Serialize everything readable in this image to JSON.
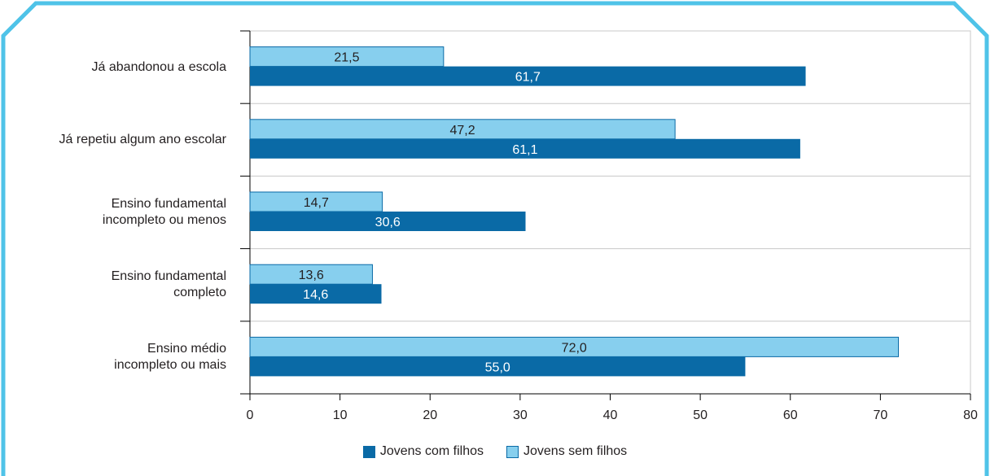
{
  "colors": {
    "frame": "#4fc3e8",
    "com_filhos": "#0a6aa6",
    "sem_filhos": "#87cfee",
    "sem_filhos_border": "#0a6aa6",
    "grid": "#c8c8c8",
    "axis": "#000000"
  },
  "chart_data": {
    "type": "bar",
    "orientation": "horizontal",
    "title": "",
    "xlabel": "",
    "ylabel": "",
    "xlim": [
      0,
      80
    ],
    "x_ticks": [
      "0",
      "10",
      "20",
      "30",
      "40",
      "50",
      "60",
      "70",
      "80"
    ],
    "grid": true,
    "legend_position": "bottom",
    "categories": [
      [
        "Já abandonou a escola"
      ],
      [
        "Já repetiu algum ano escolar"
      ],
      [
        "Ensino fundamental",
        "incompleto ou menos"
      ],
      [
        "Ensino fundamental",
        "completo"
      ],
      [
        "Ensino médio",
        "incompleto ou mais"
      ]
    ],
    "series": [
      {
        "name": "Jovens sem filhos",
        "values": [
          21.5,
          47.2,
          14.7,
          13.6,
          72.0
        ],
        "labels": [
          "21,5",
          "47,2",
          "14,7",
          "13,6",
          "72,0"
        ]
      },
      {
        "name": "Jovens com filhos",
        "values": [
          61.7,
          61.1,
          30.6,
          14.6,
          55.0
        ],
        "labels": [
          "61,7",
          "61,1",
          "30,6",
          "14,6",
          "55,0"
        ]
      }
    ]
  }
}
